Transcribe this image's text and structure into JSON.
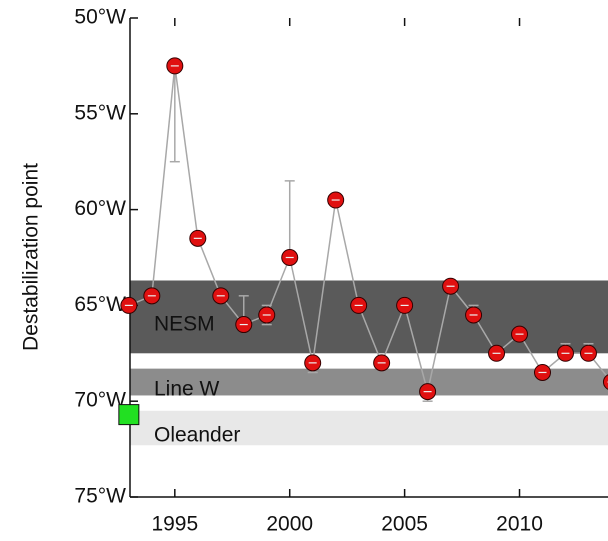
{
  "chart_data": {
    "type": "line",
    "y_label": "Destabilization point",
    "x": [
      1993,
      1994,
      1995,
      1996,
      1997,
      1998,
      1999,
      2000,
      2001,
      2002,
      2003,
      2004,
      2005,
      2006,
      2007,
      2008,
      2009,
      2010,
      2011,
      2012,
      2013,
      2014
    ],
    "series": [
      {
        "color": "#e01010",
        "line_color": "#a8a8a8",
        "values": [
          65.0,
          64.5,
          52.5,
          61.5,
          64.5,
          66.0,
          65.5,
          62.5,
          68.0,
          59.5,
          65.0,
          68.0,
          65.0,
          69.5,
          64.0,
          65.5,
          67.5,
          66.5,
          68.5,
          67.5,
          67.5,
          69.0
        ],
        "error_low": [
          0.3,
          0.3,
          0.2,
          0.3,
          0.3,
          1.5,
          0.5,
          4.0,
          0.3,
          0.3,
          0.3,
          0.3,
          0.3,
          0.3,
          0.3,
          0.5,
          0.3,
          0.3,
          0.3,
          0.5,
          0.5,
          0.3
        ],
        "error_high": [
          0.3,
          0.3,
          5.0,
          0.3,
          0.3,
          0.3,
          0.5,
          0.3,
          0.5,
          0.3,
          0.3,
          0.3,
          0.3,
          0.5,
          0.3,
          0.3,
          0.3,
          0.3,
          0.3,
          0.3,
          0.3,
          0.3
        ]
      }
    ],
    "extra_points": [
      {
        "x": 1993,
        "value": 70.7,
        "color": "#22e022"
      }
    ],
    "bands": [
      {
        "label": "NESM",
        "from": 63.7,
        "to": 67.5,
        "color": "#5a5a5a",
        "text_color": "#ffffff"
      },
      {
        "label": "Line W",
        "from": 68.3,
        "to": 69.7,
        "color": "#8c8c8c",
        "text_color": "#111111"
      },
      {
        "label": "Oleander",
        "from": 70.5,
        "to": 72.3,
        "color": "#e8e8e8",
        "text_color": "#111111"
      }
    ],
    "xlim": [
      1993.05,
      2013.85
    ],
    "xticks": [
      1995,
      2000,
      2005,
      2010
    ],
    "ylim": [
      50,
      75
    ],
    "yticks": [
      {
        "value": 50,
        "label": "50°W"
      },
      {
        "value": 55,
        "label": "55°W"
      },
      {
        "value": 60,
        "label": "60°W"
      },
      {
        "value": 65,
        "label": "65°W"
      },
      {
        "value": 70,
        "label": "70°W"
      },
      {
        "value": 75,
        "label": "75°W"
      }
    ]
  }
}
